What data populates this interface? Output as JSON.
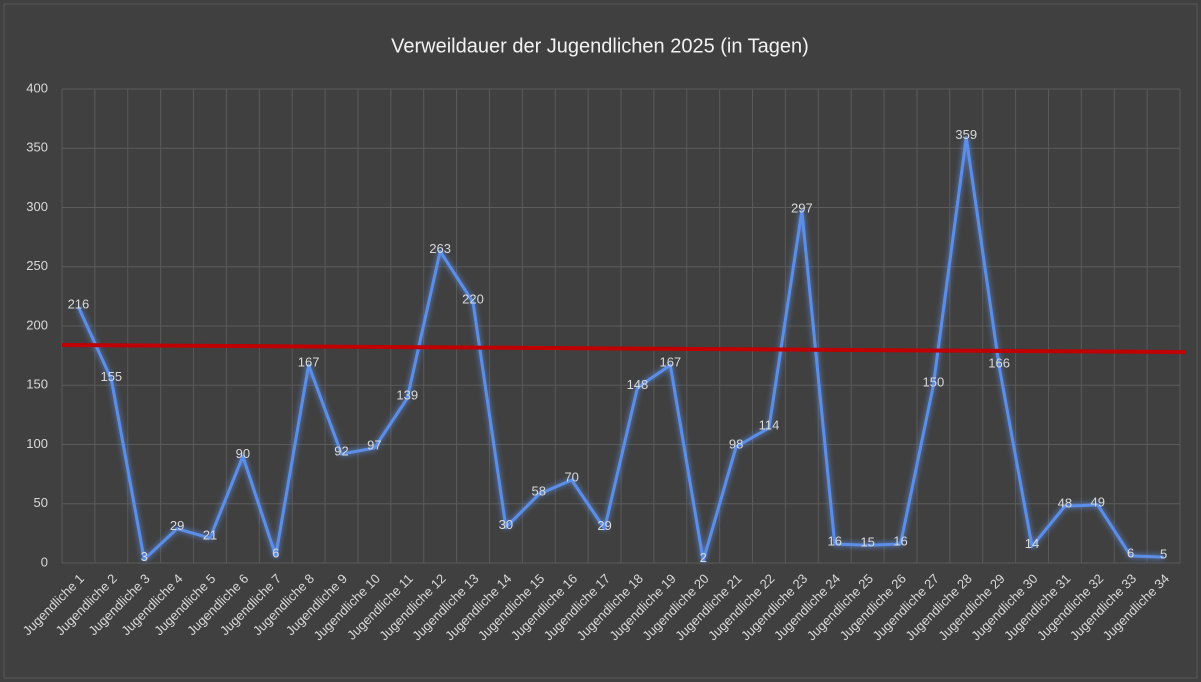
{
  "chart_data": {
    "type": "line",
    "title": "Verweildauer der Jugendlichen 2025 (in Tagen)",
    "categories": [
      "Jugendliche 1",
      "Jugendliche 2",
      "Jugendliche 3",
      "Jugendliche 4",
      "Jugendliche 5",
      "Jugendliche 6",
      "Jugendliche 7",
      "Jugendliche 8",
      "Jugendliche 9",
      "Jugendliche 10",
      "Jugendliche 11",
      "Jugendliche 12",
      "Jugendliche 13",
      "Jugendliche 14",
      "Jugendliche 15",
      "Jugendliche 16",
      "Jugendliche 17",
      "Jugendliche 18",
      "Jugendliche 19",
      "Jugendliche 20",
      "Jugendliche 21",
      "Jugendliche 22",
      "Jugendliche 23",
      "Jugendliche 24",
      "Jugendliche 25",
      "Jugendliche 26",
      "Jugendliche 27",
      "Jugendliche 28",
      "Jugendliche 29",
      "Jugendliche 30",
      "Jugendliche 31",
      "Jugendliche 32",
      "Jugendliche 33",
      "Jugendliche 34"
    ],
    "values": [
      216,
      155,
      3,
      29,
      21,
      90,
      6,
      167,
      92,
      97,
      139,
      263,
      220,
      30,
      58,
      70,
      29,
      148,
      167,
      2,
      98,
      114,
      297,
      16,
      15,
      16,
      150,
      359,
      166,
      14,
      48,
      49,
      6,
      5
    ],
    "color": "#5b8ee8",
    "trendline": {
      "color": "#c00000",
      "start": 184,
      "end": 178
    },
    "ylim": [
      0,
      400
    ],
    "yticks": [
      0,
      50,
      100,
      150,
      200,
      250,
      300,
      350,
      400
    ],
    "grid": true
  }
}
